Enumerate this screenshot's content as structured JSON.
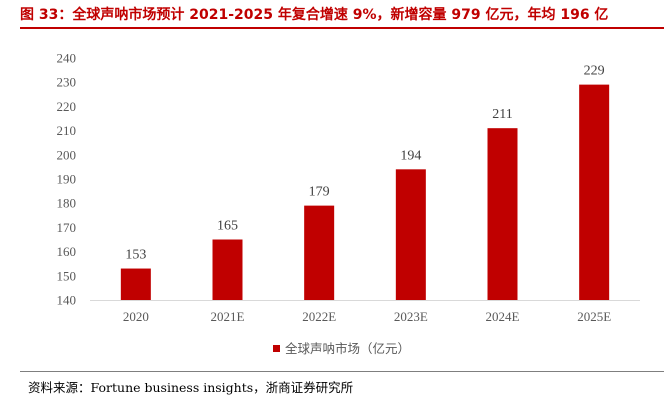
{
  "figure": {
    "title": "图 33：全球声呐市场预计 2021-2025 年复合增速 9%，新增容量 979 亿元，年均 196 亿",
    "source": "资料来源：Fortune business insights，浙商证券研究所"
  },
  "chart_data": {
    "type": "bar",
    "categories": [
      "2020",
      "2021E",
      "2022E",
      "2023E",
      "2024E",
      "2025E"
    ],
    "series": [
      {
        "name": "全球声呐市场（亿元）",
        "values": [
          153,
          165,
          179,
          194,
          211,
          229
        ],
        "color": "#c00000"
      }
    ],
    "ylim": [
      140,
      240
    ],
    "yticks": [
      "140",
      "150",
      "160",
      "170",
      "180",
      "190",
      "200",
      "210",
      "220",
      "230",
      "240"
    ],
    "grid": false,
    "legend_position": "bottom-center",
    "data_labels": true
  }
}
